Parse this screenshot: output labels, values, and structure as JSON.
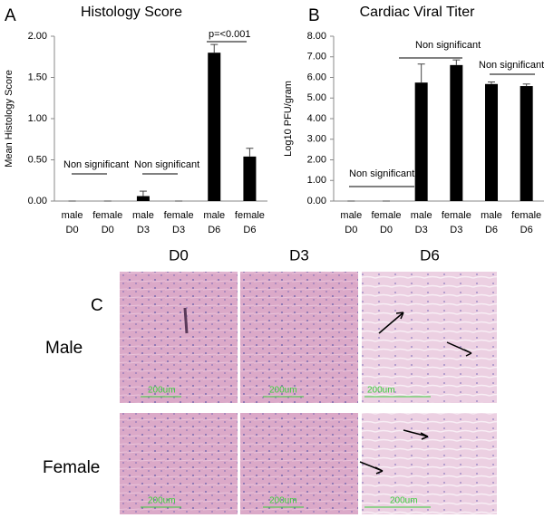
{
  "chart_data": [
    {
      "type": "bar",
      "label": "A",
      "title": "Histology Score",
      "y_label": "Mean Histology Score",
      "categories": [
        "male D0",
        "female D0",
        "male D3",
        "female D3",
        "male D6",
        "female D6"
      ],
      "values": [
        0,
        0,
        0.06,
        0,
        1.8,
        0.54
      ],
      "errors": [
        0,
        0,
        0.06,
        0,
        0.1,
        0.1
      ],
      "color": "#000000",
      "ylim": [
        0,
        2
      ],
      "yticks": [
        {
          "value": 0,
          "label": "0.00"
        },
        {
          "value": 0.5,
          "label": "0.50"
        },
        {
          "value": 1,
          "label": "1.00"
        },
        {
          "value": 1.5,
          "label": "1.50"
        },
        {
          "value": 2,
          "label": "2.00"
        }
      ],
      "annotations": [
        "Non significant",
        "Non significant",
        "p=<0.001"
      ]
    },
    {
      "type": "bar",
      "label": "B",
      "title": "Cardiac Viral Titer",
      "y_label": "Log10 PFU/gram",
      "categories": [
        "male D0",
        "female D0",
        "male D3",
        "female D3",
        "male D6",
        "female D6"
      ],
      "values": [
        0,
        0,
        5.75,
        6.6,
        5.68,
        5.58
      ],
      "errors": [
        0,
        0,
        0.9,
        0.25,
        0.1,
        0.1
      ],
      "color": "#000000",
      "ylim": [
        0,
        8
      ],
      "yticks": [
        {
          "value": 0,
          "label": "0.00"
        },
        {
          "value": 1,
          "label": "1.00"
        },
        {
          "value": 2,
          "label": "2.00"
        },
        {
          "value": 3,
          "label": "3.00"
        },
        {
          "value": 4,
          "label": "4.00"
        },
        {
          "value": 5,
          "label": "5.00"
        },
        {
          "value": 6,
          "label": "6.00"
        },
        {
          "value": 7,
          "label": "7.00"
        },
        {
          "value": 8,
          "label": "8.00"
        }
      ],
      "annotations": [
        "Non significant",
        "Non significant",
        "Non significant"
      ]
    }
  ],
  "panel_c": {
    "label": "C",
    "columns": [
      "D0",
      "D3",
      "D6"
    ],
    "rows": [
      "Male",
      "Female"
    ],
    "scale_bar": "200um"
  }
}
